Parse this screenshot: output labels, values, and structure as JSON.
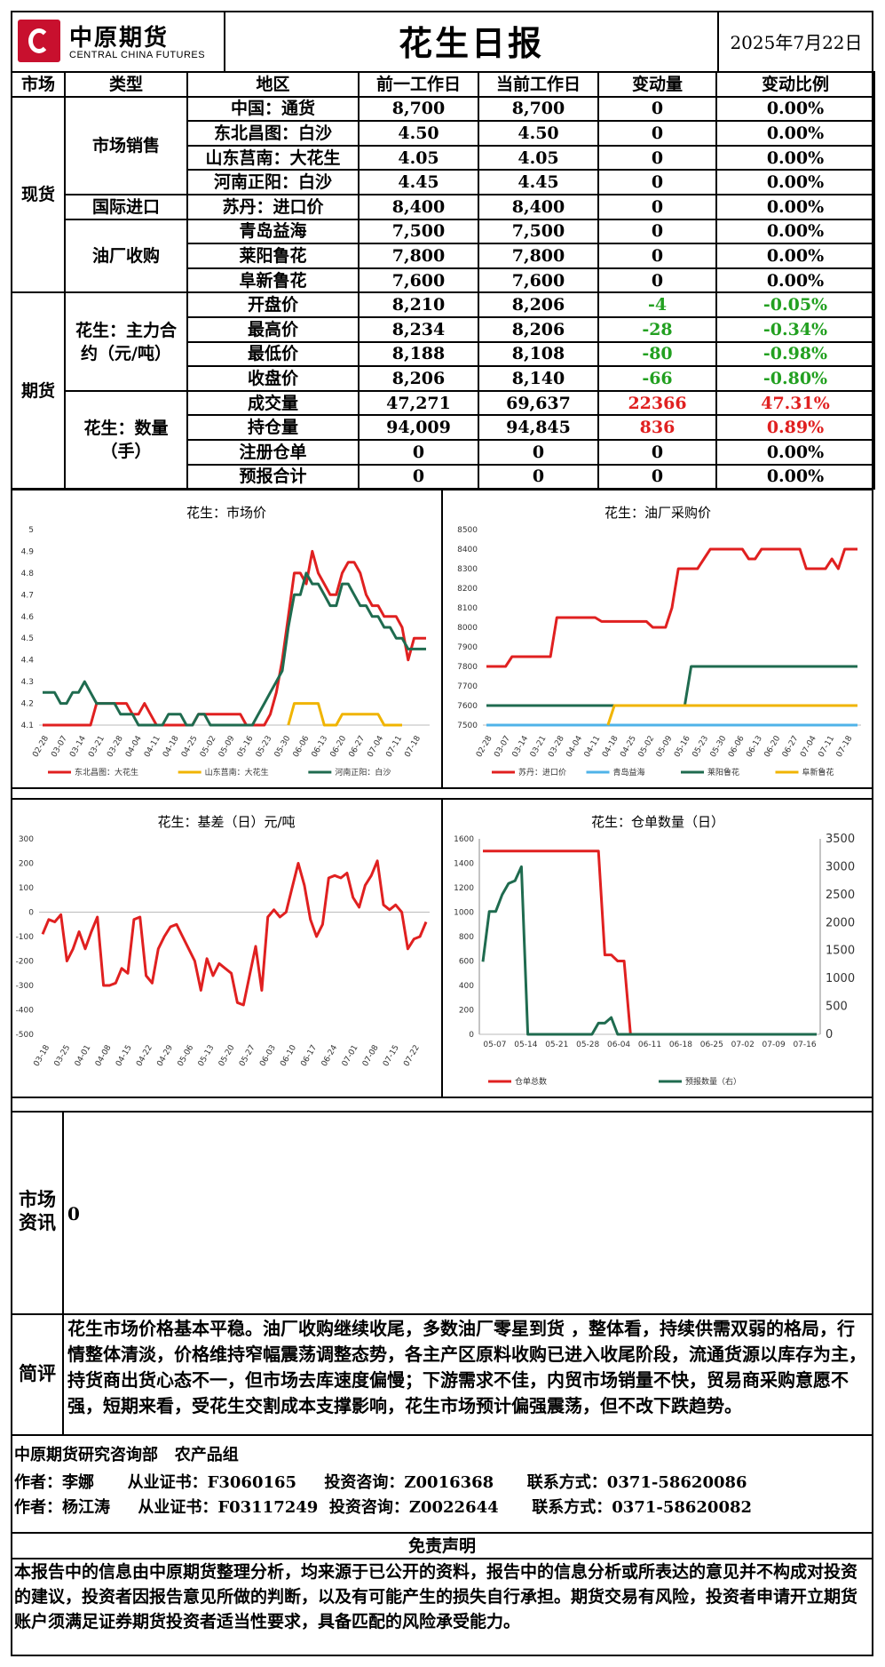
{
  "header": {
    "logo_cn": "中原期货",
    "logo_en": "CENTRAL CHINA FUTURES",
    "title": "花生日报",
    "date": "2025年7月22日"
  },
  "table": {
    "columns": [
      "市场",
      "类型",
      "地区",
      "前一工作日",
      "当前工作日",
      "变动量",
      "变动比例"
    ],
    "spot_label": "现货",
    "futures_label": "期货",
    "groups": {
      "market_sales": "市场销售",
      "import": "国际进口",
      "mill": "油厂收购",
      "main_contract": "花生：主力合约（元/吨）",
      "volume": "花生：数量（手）"
    },
    "rows": [
      {
        "region": "中国：通货",
        "prev": "8,700",
        "curr": "8,700",
        "chg": "0",
        "pct": "0.00%"
      },
      {
        "region": "东北昌图：白沙",
        "prev": "4.50",
        "curr": "4.50",
        "chg": "0",
        "pct": "0.00%"
      },
      {
        "region": "山东莒南：大花生",
        "prev": "4.05",
        "curr": "4.05",
        "chg": "0",
        "pct": "0.00%"
      },
      {
        "region": "河南正阳：白沙",
        "prev": "4.45",
        "curr": "4.45",
        "chg": "0",
        "pct": "0.00%"
      },
      {
        "region": "苏丹：进口价",
        "prev": "8,400",
        "curr": "8,400",
        "chg": "0",
        "pct": "0.00%"
      },
      {
        "region": "青岛益海",
        "prev": "7,500",
        "curr": "7,500",
        "chg": "0",
        "pct": "0.00%"
      },
      {
        "region": "莱阳鲁花",
        "prev": "7,800",
        "curr": "7,800",
        "chg": "0",
        "pct": "0.00%"
      },
      {
        "region": "阜新鲁花",
        "prev": "7,600",
        "curr": "7,600",
        "chg": "0",
        "pct": "0.00%"
      },
      {
        "region": "开盘价",
        "prev": "8,210",
        "curr": "8,206",
        "chg": "-4",
        "pct": "-0.05%"
      },
      {
        "region": "最高价",
        "prev": "8,234",
        "curr": "8,206",
        "chg": "-28",
        "pct": "-0.34%"
      },
      {
        "region": "最低价",
        "prev": "8,188",
        "curr": "8,108",
        "chg": "-80",
        "pct": "-0.98%"
      },
      {
        "region": "收盘价",
        "prev": "8,206",
        "curr": "8,140",
        "chg": "-66",
        "pct": "-0.80%"
      },
      {
        "region": "成交量",
        "prev": "47,271",
        "curr": "69,637",
        "chg": "22366",
        "pct": "47.31%"
      },
      {
        "region": "持仓量",
        "prev": "94,009",
        "curr": "94,845",
        "chg": "836",
        "pct": "0.89%"
      },
      {
        "region": "注册仓单",
        "prev": "0",
        "curr": "0",
        "chg": "0",
        "pct": "0.00%"
      },
      {
        "region": "预报合计",
        "prev": "0",
        "curr": "0",
        "chg": "0",
        "pct": "0.00%"
      }
    ]
  },
  "chart_data": [
    {
      "type": "line",
      "title": "花生：市场价",
      "ylim": [
        4.1,
        5
      ],
      "yticks": [
        "4.1",
        "4.2",
        "4.3",
        "4.4",
        "4.5",
        "4.6",
        "4.7",
        "4.8",
        "4.9",
        "5"
      ],
      "xticks": [
        "02-28",
        "03-07",
        "03-14",
        "03-21",
        "03-28",
        "04-04",
        "04-11",
        "04-18",
        "04-25",
        "05-02",
        "05-09",
        "05-16",
        "05-23",
        "05-30",
        "06-06",
        "06-13",
        "06-20",
        "06-27",
        "07-04",
        "07-11",
        "07-18"
      ],
      "series": [
        {
          "name": "东北昌图：大花生",
          "color": "#e02020",
          "values": [
            4.1,
            4.1,
            4.1,
            4.1,
            4.1,
            4.1,
            4.1,
            4.1,
            4.1,
            4.2,
            4.2,
            4.2,
            4.2,
            4.2,
            4.2,
            4.15,
            4.15,
            4.2,
            4.15,
            4.1,
            4.1,
            4.1,
            4.1,
            4.1,
            4.1,
            4.1,
            4.15,
            4.15,
            4.15,
            4.15,
            4.15,
            4.15,
            4.15,
            4.15,
            4.1,
            4.1,
            4.1,
            4.1,
            4.15,
            4.25,
            4.4,
            4.6,
            4.8,
            4.8,
            4.75,
            4.9,
            4.8,
            4.75,
            4.7,
            4.7,
            4.8,
            4.85,
            4.85,
            4.8,
            4.7,
            4.65,
            4.65,
            4.6,
            4.6,
            4.6,
            4.55,
            4.4,
            4.5,
            4.5,
            4.5
          ]
        },
        {
          "name": "山东莒南：大花生",
          "color": "#f0b400",
          "values": [
            null,
            null,
            null,
            null,
            null,
            null,
            null,
            null,
            null,
            null,
            null,
            null,
            null,
            null,
            null,
            null,
            null,
            null,
            null,
            null,
            null,
            null,
            null,
            null,
            null,
            null,
            null,
            null,
            null,
            null,
            null,
            null,
            null,
            null,
            null,
            null,
            null,
            null,
            null,
            null,
            null,
            4.1,
            4.2,
            4.2,
            4.2,
            4.2,
            4.2,
            4.1,
            4.1,
            4.1,
            4.15,
            4.15,
            4.15,
            4.15,
            4.15,
            4.15,
            4.15,
            4.1,
            4.1,
            4.1,
            4.1,
            null,
            null,
            null,
            null
          ]
        },
        {
          "name": "河南正阳：白沙",
          "color": "#1f6b4f",
          "values": [
            4.25,
            4.25,
            4.25,
            4.2,
            4.2,
            4.25,
            4.25,
            4.3,
            4.25,
            4.2,
            4.2,
            4.2,
            4.2,
            4.15,
            4.15,
            4.15,
            4.1,
            4.1,
            4.1,
            4.1,
            4.1,
            4.15,
            4.15,
            4.15,
            4.1,
            4.1,
            4.15,
            4.15,
            4.1,
            4.1,
            4.1,
            4.1,
            4.1,
            4.1,
            4.1,
            4.1,
            4.15,
            4.2,
            4.25,
            4.3,
            4.35,
            4.55,
            4.7,
            4.7,
            4.8,
            4.75,
            4.75,
            4.7,
            4.65,
            4.65,
            4.75,
            4.75,
            4.7,
            4.65,
            4.65,
            4.6,
            4.6,
            4.55,
            4.55,
            4.5,
            4.5,
            4.45,
            4.45,
            4.45,
            4.45
          ]
        }
      ]
    },
    {
      "type": "line",
      "title": "花生：油厂采购价",
      "ylim": [
        7500,
        8500
      ],
      "yticks": [
        "7500",
        "7600",
        "7700",
        "7800",
        "7900",
        "8000",
        "8100",
        "8200",
        "8300",
        "8400",
        "8500"
      ],
      "xticks": [
        "02-28",
        "03-07",
        "03-14",
        "03-21",
        "03-28",
        "04-04",
        "04-11",
        "04-18",
        "04-25",
        "05-02",
        "05-09",
        "05-16",
        "05-23",
        "05-30",
        "06-06",
        "06-13",
        "06-20",
        "06-27",
        "07-04",
        "07-11",
        "07-18"
      ],
      "series": [
        {
          "name": "苏丹：进口价",
          "color": "#e02020",
          "values": [
            7800,
            7800,
            7800,
            7800,
            7850,
            7850,
            7850,
            7850,
            7850,
            7850,
            7850,
            8050,
            8050,
            8050,
            8050,
            8050,
            8050,
            8050,
            8030,
            8030,
            8030,
            8030,
            8030,
            8030,
            8030,
            8030,
            8000,
            8000,
            8000,
            8100,
            8300,
            8300,
            8300,
            8300,
            8350,
            8400,
            8400,
            8400,
            8400,
            8400,
            8400,
            8350,
            8350,
            8400,
            8400,
            8400,
            8400,
            8400,
            8400,
            8400,
            8300,
            8300,
            8300,
            8300,
            8350,
            8300,
            8400,
            8400,
            8400
          ]
        },
        {
          "name": "青岛益海",
          "color": "#4fb3e8",
          "values": [
            7500,
            7500,
            7500,
            7500,
            7500,
            7500,
            7500,
            7500,
            7500,
            7500,
            7500,
            7500,
            7500,
            7500,
            7500,
            7500,
            7500,
            7500,
            7500,
            7500,
            7500,
            7500,
            7500,
            7500,
            7500,
            7500,
            7500,
            7500,
            7500,
            7500,
            7500,
            7500,
            7500,
            7500,
            7500,
            7500,
            7500,
            7500,
            7500,
            7500,
            7500,
            7500,
            7500,
            7500,
            7500,
            7500,
            7500,
            7500,
            7500,
            7500,
            7500,
            7500,
            7500,
            7500,
            7500,
            7500,
            7500,
            7500,
            7500
          ]
        },
        {
          "name": "莱阳鲁花",
          "color": "#1f6b4f",
          "values": [
            7600,
            7600,
            7600,
            7600,
            7600,
            7600,
            7600,
            7600,
            7600,
            7600,
            7600,
            7600,
            7600,
            7600,
            7600,
            7600,
            7600,
            7600,
            7600,
            7600,
            7600,
            7600,
            7600,
            7600,
            7600,
            7600,
            7600,
            7600,
            7600,
            7600,
            7600,
            7600,
            7800,
            7800,
            7800,
            7800,
            7800,
            7800,
            7800,
            7800,
            7800,
            7800,
            7800,
            7800,
            7800,
            7800,
            7800,
            7800,
            7800,
            7800,
            7800,
            7800,
            7800,
            7800,
            7800,
            7800,
            7800,
            7800,
            7800
          ]
        },
        {
          "name": "阜新鲁花",
          "color": "#f0b400",
          "values": [
            null,
            null,
            null,
            null,
            null,
            null,
            null,
            null,
            null,
            null,
            null,
            null,
            null,
            null,
            null,
            null,
            null,
            null,
            null,
            7500,
            7600,
            7600,
            7600,
            7600,
            7600,
            7600,
            7600,
            7600,
            7600,
            7600,
            7600,
            7600,
            7600,
            7600,
            7600,
            7600,
            7600,
            7600,
            7600,
            7600,
            7600,
            7600,
            7600,
            7600,
            7600,
            7600,
            7600,
            7600,
            7600,
            7600,
            7600,
            7600,
            7600,
            7600,
            7600,
            7600,
            7600,
            7600,
            7600
          ]
        }
      ]
    },
    {
      "type": "line",
      "title": "花生：基差（日）元/吨",
      "ylim": [
        -500,
        300
      ],
      "yticks": [
        "-500",
        "-400",
        "-300",
        "-200",
        "-100",
        "0",
        "100",
        "200",
        "300"
      ],
      "xticks": [
        "03-18",
        "03-25",
        "04-01",
        "04-08",
        "04-15",
        "04-22",
        "04-29",
        "05-06",
        "05-13",
        "05-20",
        "05-27",
        "06-03",
        "06-10",
        "06-17",
        "06-24",
        "07-01",
        "07-08",
        "07-15",
        "07-22"
      ],
      "series": [
        {
          "name": "基差",
          "color": "#e02020",
          "values": [
            -90,
            -30,
            -40,
            -10,
            -200,
            -150,
            -80,
            -150,
            -80,
            -20,
            -300,
            -300,
            -290,
            -230,
            -250,
            -30,
            -20,
            -260,
            -290,
            -150,
            -100,
            -60,
            -50,
            -100,
            -150,
            -200,
            -320,
            -190,
            -260,
            -210,
            -230,
            -250,
            -370,
            -380,
            -260,
            -140,
            -320,
            -20,
            10,
            -20,
            0,
            100,
            200,
            110,
            -30,
            -100,
            -50,
            140,
            150,
            140,
            160,
            60,
            20,
            110,
            150,
            210,
            30,
            10,
            30,
            0,
            -150,
            -110,
            -100,
            -40
          ]
        }
      ]
    },
    {
      "type": "line",
      "title": "花生：仓单数量（日）",
      "ylim_left": [
        0,
        1600
      ],
      "ylim_right": [
        0,
        3500
      ],
      "yticks_left": [
        "0",
        "200",
        "400",
        "600",
        "800",
        "1000",
        "1200",
        "1400",
        "1600"
      ],
      "yticks_right": [
        "0",
        "500",
        "1000",
        "1500",
        "2000",
        "2500",
        "3000",
        "3500"
      ],
      "xticks": [
        "05-07",
        "05-14",
        "05-21",
        "05-28",
        "06-04",
        "06-11",
        "06-18",
        "06-25",
        "07-02",
        "07-09",
        "07-16"
      ],
      "series": [
        {
          "name": "仓单总数",
          "color": "#e02020",
          "axis": "left",
          "values": [
            1500,
            1500,
            1500,
            1500,
            1500,
            1500,
            1500,
            1500,
            1500,
            1500,
            1500,
            1500,
            1500,
            1500,
            1500,
            1500,
            1500,
            1500,
            1500,
            650,
            650,
            600,
            600,
            0,
            0,
            0,
            0,
            0,
            0,
            0,
            0,
            0,
            0,
            0,
            0,
            0,
            0,
            0,
            0,
            0,
            0,
            0,
            0,
            0,
            0,
            0,
            0,
            0,
            0,
            0,
            0,
            0,
            0
          ]
        },
        {
          "name": "预报数量（右）",
          "color": "#1f6b4f",
          "axis": "right",
          "values": [
            1300,
            2200,
            2200,
            2500,
            2700,
            2750,
            3000,
            0,
            0,
            0,
            0,
            0,
            0,
            0,
            0,
            0,
            0,
            0,
            200,
            200,
            300,
            0,
            0,
            0,
            0,
            0,
            0,
            0,
            0,
            0,
            0,
            0,
            0,
            0,
            0,
            0,
            0,
            0,
            0,
            0,
            0,
            0,
            0,
            0,
            0,
            0,
            0,
            0,
            0,
            0,
            0,
            0,
            0
          ]
        }
      ]
    }
  ],
  "news": {
    "label": "市场资讯",
    "content": "0"
  },
  "comment": {
    "label": "简评",
    "content": "花生市场价格基本平稳。油厂收购继续收尾，多数油厂零星到货 ，整体看，持续供需双弱的格局，行情整体清淡，价格维持窄幅震荡调整态势，各主产区原料收购已进入收尾阶段，流通货源以库存为主，持货商出货心态不一，但市场去库速度偏慢；下游需求不佳，内贸市场销量不快，贸易商采购意愿不强，短期来看，受花生交割成本支撑影响，花生市场预计偏强震荡，但不改下跌趋势。"
  },
  "authors": {
    "dept": "中原期货研究咨询部   农产品组",
    "line1": "作者：李娜      从业证书：F3060165     投资咨询：Z0016368      联系方式：0371-58620086",
    "line2": "作者：杨江涛     从业证书：F03117249  投资咨询：Z0022644      联系方式：0371-58620082"
  },
  "disclaimer": {
    "title": "免责声明",
    "content": "本报告中的信息由中原期货整理分析，均来源于已公开的资料，报告中的信息分析或所表达的意见并不构成对投资的建议，投资者因报告意见所做的判断，以及有可能产生的损失自行承担。期货交易有风险，投资者申请开立期货账户须满足证券期货投资者适当性要求，具备匹配的风险承受能力。"
  }
}
